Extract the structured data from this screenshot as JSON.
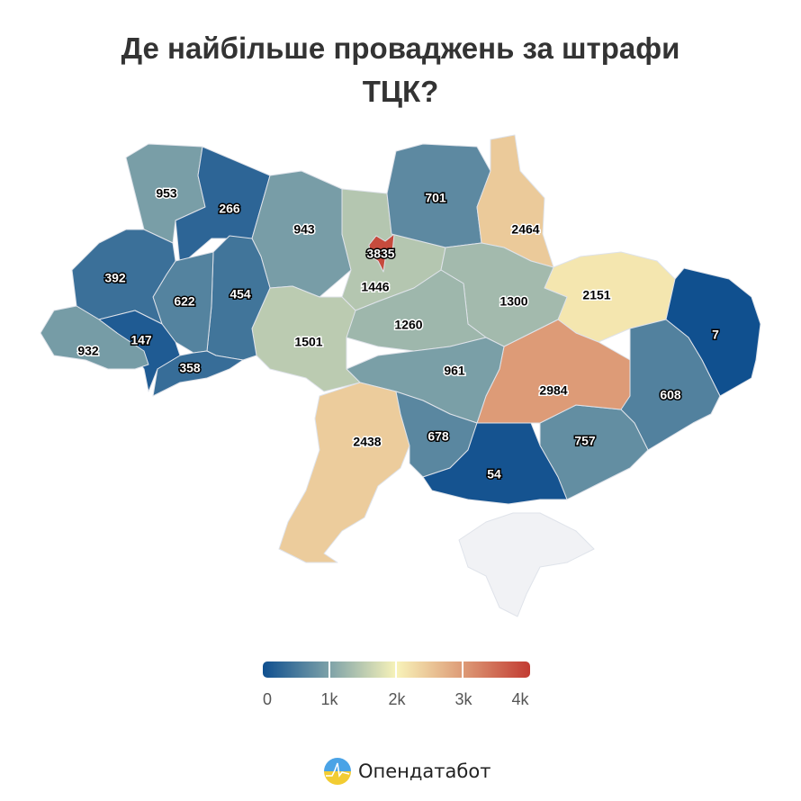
{
  "title_line1": "Де найбільше проваджень за штрафи",
  "title_line2": "ТЦК?",
  "colors": {
    "scale": [
      "#0f4f8f",
      "#7ea2a8",
      "#f8f3b9",
      "#dd9a76",
      "#c23b32"
    ],
    "no_data": "#f1f2f5"
  },
  "regions": [
    {
      "value": 953
    },
    {
      "value": 266
    },
    {
      "value": 943
    },
    {
      "value": 1446
    },
    {
      "value": 3835
    },
    {
      "value": 701
    },
    {
      "value": 2464
    },
    {
      "value": 2151
    },
    {
      "value": 7
    },
    {
      "value": 608
    },
    {
      "value": 757
    },
    {
      "value": 2984
    },
    {
      "value": 1300
    },
    {
      "value": 1260
    },
    {
      "value": 961
    },
    {
      "value": 1501
    },
    {
      "value": 454
    },
    {
      "value": 622
    },
    {
      "value": 392
    },
    {
      "value": 147
    },
    {
      "value": 932
    },
    {
      "value": 358
    },
    {
      "value": 2438
    },
    {
      "value": 678
    },
    {
      "value": 54
    }
  ],
  "legend": {
    "min": 0,
    "max": 4000,
    "ticks": [
      "0",
      "1k",
      "2k",
      "3k",
      "4k"
    ]
  },
  "brand": "Опендатабот"
}
